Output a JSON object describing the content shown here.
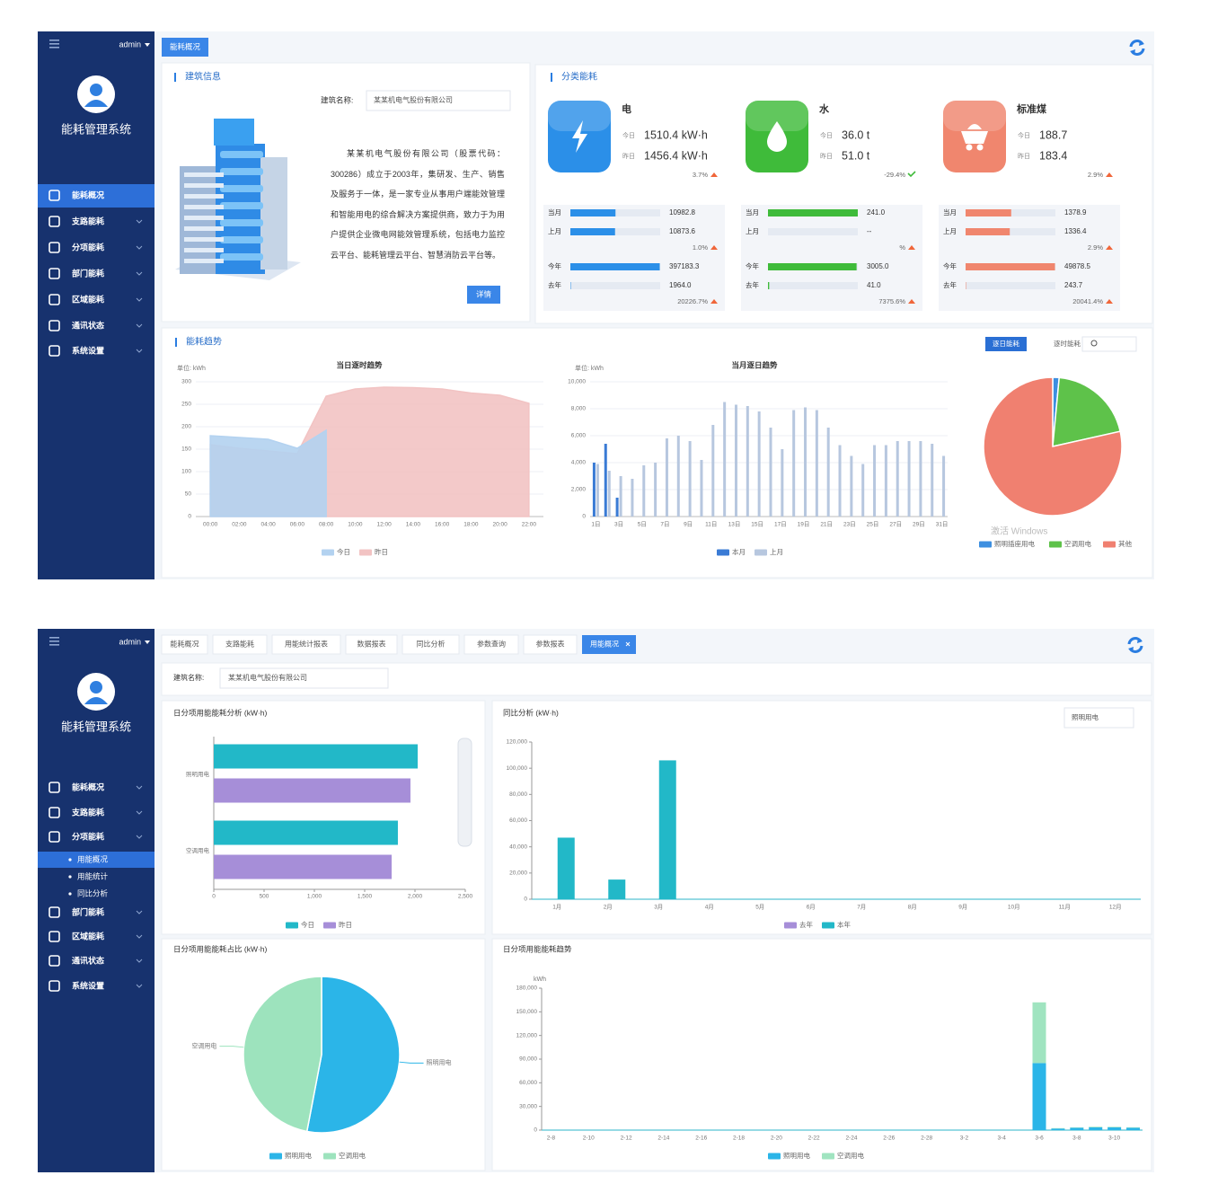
{
  "overview": {
    "sidebar": {
      "user": "admin",
      "system": "能耗管理系统",
      "menu": [
        "能耗概况",
        "支路能耗",
        "分项能耗",
        "部门能耗",
        "区域能耗",
        "通讯状态",
        "系统设置"
      ],
      "active": 0
    },
    "tab": "能耗概况",
    "building": {
      "title": "建筑信息",
      "name_label": "建筑名称:",
      "name": "某某机电气股份有限公司",
      "description": "某某机电气股份有限公司（股票代码：300286）成立于2003年，集研发、生产、销售及服务于一体，是一家专业从事用户端能效管理和智能用电的综合解决方案提供商，致力于为用户提供企业微电网能效管理系统，包括电力监控云平台、能耗管理云平台、智慧消防云平台等。",
      "button": "详情"
    },
    "classified": {
      "title": "分类能耗",
      "items": [
        {
          "name": "电",
          "color": "#2b8fe8",
          "rows": [
            {
              "label": "今日",
              "value": "1510.4 kW·h"
            },
            {
              "label": "昨日",
              "value": "1456.4 kW·h"
            }
          ],
          "change": "3.7%",
          "trend": "up",
          "month": {
            "labels": [
              "当月",
              "上月"
            ],
            "values": [
              "10982.8",
              "10873.6"
            ],
            "change": "1.0%"
          },
          "year": {
            "labels": [
              "今年",
              "去年"
            ],
            "values": [
              "397183.3",
              "1964.0"
            ],
            "change": "20226.7%"
          }
        },
        {
          "name": "水",
          "color": "#3fbb3a",
          "rows": [
            {
              "label": "今日",
              "value": "36.0 t"
            },
            {
              "label": "昨日",
              "value": "51.0 t"
            }
          ],
          "change": "-29.4%",
          "trend": "down",
          "month": {
            "labels": [
              "当月",
              "上月"
            ],
            "values": [
              "241.0",
              "--"
            ],
            "change": "%"
          },
          "year": {
            "labels": [
              "今年",
              "去年"
            ],
            "values": [
              "3005.0",
              "41.0"
            ],
            "change": "7375.6%"
          }
        },
        {
          "name": "标准煤",
          "color": "#f0866e",
          "rows": [
            {
              "label": "今日",
              "value": "188.7"
            },
            {
              "label": "昨日",
              "value": "183.4"
            }
          ],
          "change": "2.9%",
          "trend": "up",
          "month": {
            "labels": [
              "当月",
              "上月"
            ],
            "values": [
              "1378.9",
              "1336.4"
            ],
            "change": "2.9%"
          },
          "year": {
            "labels": [
              "今年",
              "去年"
            ],
            "values": [
              "49878.5",
              "243.7"
            ],
            "change": "20041.4%"
          }
        }
      ]
    },
    "trend": {
      "title": "能耗趋势",
      "buttons": [
        "逐日能耗",
        "逐时能耗"
      ],
      "active": 0,
      "watermark": "激活 Windows",
      "charts": [
        {
          "type": "area",
          "title": "当日逐时趋势",
          "unit": "单位: kWh",
          "grid": true,
          "categories": [
            "00:00",
            "02:00",
            "04:00",
            "06:00",
            "08:00",
            "10:00",
            "12:00",
            "14:00",
            "16:00",
            "18:00",
            "20:00",
            "22:00"
          ],
          "series": [
            {
              "name": "今日",
              "color": "#b3d2f0",
              "values": [
                180,
                176,
                172,
                152,
                192,
                null,
                null,
                null,
                null,
                null,
                null,
                null
              ]
            },
            {
              "name": "昨日",
              "color": "#f2c3c3",
              "values": [
                160,
                152,
                146,
                140,
                268,
                284,
                288,
                287,
                284,
                275,
                270,
                252
              ]
            }
          ],
          "ylim": [
            0,
            300
          ],
          "yticks": [
            0,
            50,
            100,
            150,
            200,
            250,
            300
          ]
        },
        {
          "type": "bar",
          "title": "当月逐日趋势",
          "unit": "单位: kWh",
          "grid": true,
          "categories": [
            "1日",
            null,
            "3日",
            null,
            "5日",
            null,
            "7日",
            null,
            "9日",
            null,
            "11日",
            null,
            "13日",
            null,
            "15日",
            null,
            "17日",
            null,
            "19日",
            null,
            "21日",
            null,
            "23日",
            null,
            "25日",
            null,
            "27日",
            null,
            "29日",
            null,
            "31日"
          ],
          "series": [
            {
              "name": "本月",
              "color": "#3a7bd5",
              "values": [
                4000,
                5400,
                1400,
                null,
                null,
                null,
                null,
                null,
                null,
                null,
                null,
                null,
                null,
                null,
                null,
                null,
                null,
                null,
                null,
                null,
                null,
                null,
                null,
                null,
                null,
                null,
                null,
                null,
                null,
                null,
                null
              ]
            },
            {
              "name": "上月",
              "color": "#b7c7df",
              "values": [
                3900,
                3400,
                3000,
                2800,
                3800,
                4000,
                5800,
                6000,
                5600,
                4200,
                6800,
                8500,
                8300,
                8200,
                7800,
                6600,
                5000,
                7900,
                8100,
                7900,
                6600,
                5300,
                4500,
                3900,
                5300,
                5300,
                5600,
                5600,
                5600,
                5400,
                4500
              ]
            }
          ],
          "ylim": [
            0,
            10000
          ],
          "yticks": [
            0,
            {
              "value": 2000,
              "label": "2,000"
            },
            {
              "value": 4000,
              "label": "4,000"
            },
            {
              "value": 6000,
              "label": "6,000"
            },
            {
              "value": 8000,
              "label": "8,000"
            },
            {
              "value": 10000,
              "label": "10,000"
            }
          ]
        },
        {
          "type": "pie",
          "categories": [
            "照明插座用电",
            "空调用电",
            "其他"
          ],
          "values": [
            1.5,
            20,
            78.5
          ],
          "colors": [
            "#3d8fe0",
            "#5ec24a",
            "#f08070"
          ]
        }
      ]
    }
  },
  "analysis": {
    "sidebar": {
      "user": "admin",
      "system": "能耗管理系统",
      "menu": [
        "能耗概况",
        "支路能耗",
        "分项能耗",
        "部门能耗",
        "区域能耗",
        "通讯状态",
        "系统设置"
      ],
      "active": 2,
      "submenu": [
        "用能概况",
        "用能统计",
        "同比分析"
      ],
      "sub_active": 0
    },
    "tabs": [
      "能耗概况",
      "支路能耗",
      "用能统计报表",
      "数据报表",
      "同比分析",
      "参数查询",
      "参数报表",
      "用能概况"
    ],
    "active_tab": 7,
    "filter": {
      "label": "建筑名称:",
      "value": "某某机电气股份有限公司"
    },
    "charts": [
      {
        "type": "hbar",
        "title": "日分项用能能耗分析 (kW·h)",
        "grid": false,
        "categories": [
          "照明用电",
          "空调用电"
        ],
        "series": [
          {
            "name": "今日",
            "color": "#22b8c8",
            "values": [
              2027,
              1830
            ]
          },
          {
            "name": "昨日",
            "color": "#a68ed8",
            "values": [
              1955,
              1768
            ]
          }
        ],
        "xlim": [
          0,
          2500
        ],
        "xticks": [
          0,
          500,
          {
            "value": 1000,
            "label": "1,000"
          },
          {
            "value": 1500,
            "label": "1,500"
          },
          {
            "value": 2000,
            "label": "2,000"
          },
          {
            "value": 2500,
            "label": "2,500"
          }
        ]
      },
      {
        "type": "bar",
        "title": "同比分析 (kW·h)",
        "selector": "照明用电",
        "grid": false,
        "categories": [
          "1月",
          "2月",
          "3月",
          "4月",
          "5月",
          "6月",
          "7月",
          "8月",
          "9月",
          "10月",
          "11月",
          "12月"
        ],
        "series": [
          {
            "name": "去年",
            "color": "#a68ed8",
            "values": [
              0,
              0,
              0,
              0,
              0,
              0,
              0,
              0,
              0,
              0,
              0,
              0
            ]
          },
          {
            "name": "本年",
            "color": "#22b8c8",
            "values": [
              47000,
              15000,
              106000,
              0,
              0,
              0,
              0,
              0,
              0,
              0,
              0,
              0
            ]
          }
        ],
        "ylim": [
          0,
          120000
        ],
        "yticks": [
          0,
          {
            "value": 20000,
            "label": "20,000"
          },
          {
            "value": 40000,
            "label": "40,000"
          },
          {
            "value": 60000,
            "label": "60,000"
          },
          {
            "value": 80000,
            "label": "80,000"
          },
          {
            "value": 100000,
            "label": "100,000"
          },
          {
            "value": 120000,
            "label": "120,000"
          }
        ]
      },
      {
        "type": "pie",
        "title": "日分项用能能耗占比 (kW·h)",
        "categories": [
          "照明用电",
          "空调用电"
        ],
        "values": [
          53,
          47
        ],
        "colors": [
          "#2bb5e8",
          "#9de3bd"
        ]
      },
      {
        "type": "stacked",
        "title": "日分项用能能耗趋势",
        "unit": "kWh",
        "grid": false,
        "categories": [
          "2-8",
          null,
          "2-10",
          null,
          "2-12",
          null,
          "2-14",
          null,
          "2-16",
          null,
          "2-18",
          null,
          "2-20",
          null,
          "2-22",
          null,
          "2-24",
          null,
          "2-26",
          null,
          "2-28",
          null,
          "3-2",
          null,
          "3-4",
          null,
          "3-6",
          null,
          "3-8",
          null,
          "3-10",
          null
        ],
        "series": [
          {
            "name": "照明用电",
            "color": "#2bb5e8",
            "values": [
              0,
              0,
              0,
              0,
              0,
              0,
              0,
              0,
              0,
              0,
              0,
              0,
              0,
              0,
              0,
              0,
              0,
              0,
              0,
              0,
              0,
              0,
              0,
              0,
              0,
              0,
              85000,
              2000,
              3000,
              3500,
              3500,
              3000
            ]
          },
          {
            "name": "空调用电",
            "color": "#a0e4c0",
            "values": [
              0,
              0,
              0,
              0,
              0,
              0,
              0,
              0,
              0,
              0,
              0,
              0,
              0,
              0,
              0,
              0,
              0,
              0,
              0,
              0,
              0,
              0,
              0,
              0,
              0,
              0,
              77000,
              500,
              500,
              800,
              700,
              600
            ]
          }
        ],
        "ylim": [
          0,
          180000
        ],
        "yticks": [
          0,
          {
            "value": 30000,
            "label": "30,000"
          },
          {
            "value": 60000,
            "label": "60,000"
          },
          {
            "value": 90000,
            "label": "90,000"
          },
          {
            "value": 120000,
            "label": "120,000"
          },
          {
            "value": 150000,
            "label": "150,000"
          },
          {
            "value": 180000,
            "label": "180,000"
          }
        ]
      }
    ]
  }
}
